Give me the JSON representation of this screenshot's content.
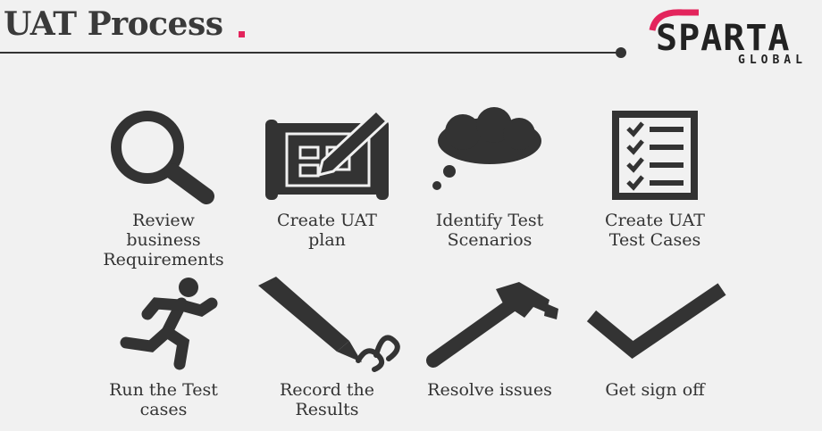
{
  "header": {
    "title": "UAT Process",
    "accent_color": "#e3245c"
  },
  "logo": {
    "word": "SPARTA",
    "sub": "GLOBAL"
  },
  "steps": [
    {
      "label": "Review\nbusiness\nRequirements",
      "icon": "magnifier-icon"
    },
    {
      "label": "Create UAT\nplan",
      "icon": "blueprint-pencil-icon"
    },
    {
      "label": "Identify Test\nScenarios",
      "icon": "thought-cloud-icon"
    },
    {
      "label": "Create UAT\nTest Cases",
      "icon": "checklist-icon"
    },
    {
      "label": "Run the Test\ncases",
      "icon": "running-person-icon"
    },
    {
      "label": "Record the\nResults",
      "icon": "fountain-pen-icon"
    },
    {
      "label": "Resolve issues",
      "icon": "hammer-icon"
    },
    {
      "label": "Get sign off",
      "icon": "checkmark-icon"
    }
  ]
}
